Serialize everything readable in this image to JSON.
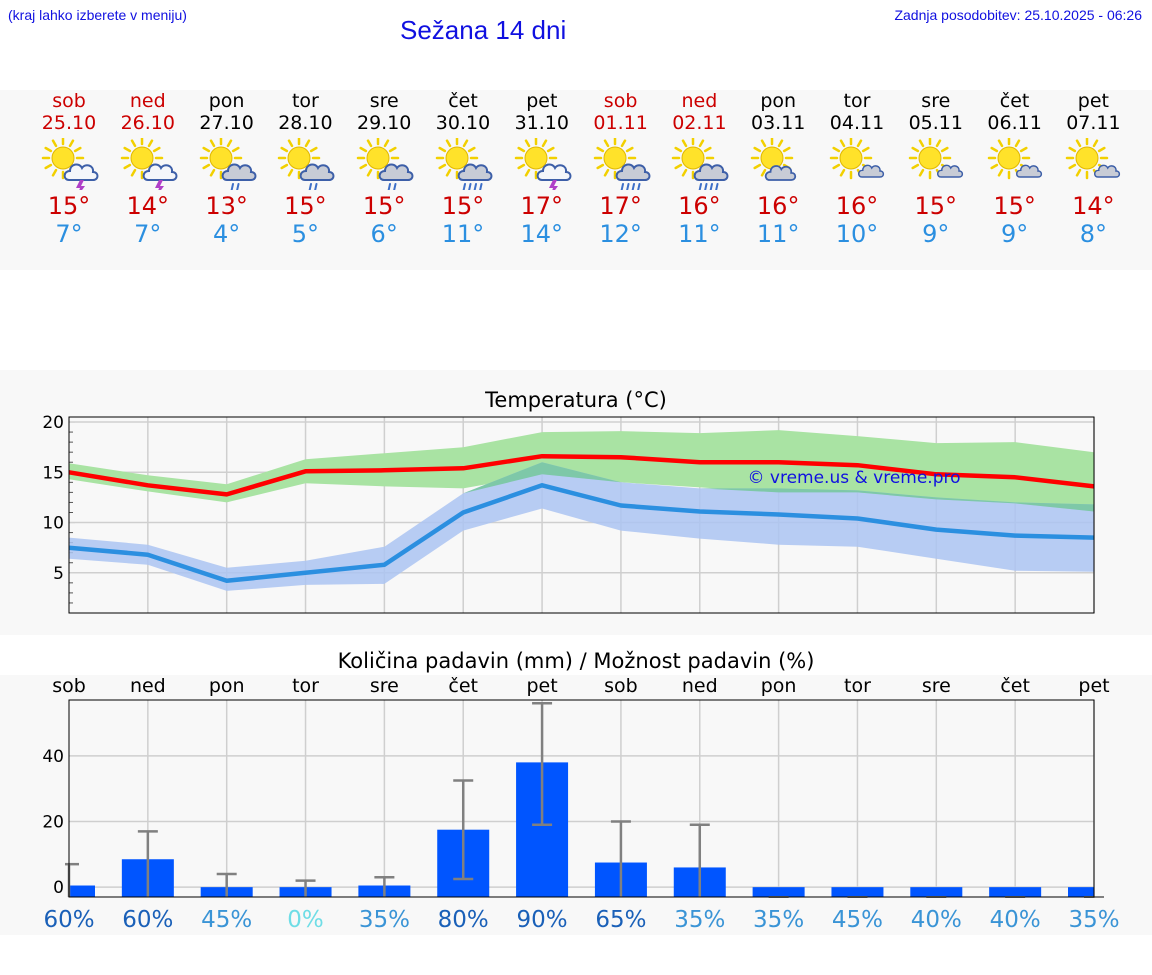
{
  "header": {
    "hint": "(kraj lahko izberete v meniju)",
    "title": "Sežana 14 dni",
    "updated": "Zadnja posodobitev: 25.10.2025 - 06:26"
  },
  "colors": {
    "weekend": "#cc0000",
    "weekday": "#000000",
    "tmax": "#cc0000",
    "tmin": "#2b8fe0",
    "max_line": "#ff0000",
    "max_band": "#a9e3a3",
    "min_line": "#2b8fe0",
    "min_band": "#abc4f2",
    "overlap_band": "#7ec8a8",
    "bar": "#0055ff",
    "errorbar": "#808080",
    "watermark": "#1010e0"
  },
  "days": [
    {
      "name": "sob",
      "date": "25.10",
      "weekend": true,
      "icon": "sun-cloud-thunder-icon",
      "max": "15°",
      "min": "7°"
    },
    {
      "name": "ned",
      "date": "26.10",
      "weekend": true,
      "icon": "sun-cloud-thunder-icon",
      "max": "14°",
      "min": "7°"
    },
    {
      "name": "pon",
      "date": "27.10",
      "weekend": false,
      "icon": "sun-cloud-rain-icon",
      "max": "13°",
      "min": "4°"
    },
    {
      "name": "tor",
      "date": "28.10",
      "weekend": false,
      "icon": "sun-cloud-rain-icon",
      "max": "15°",
      "min": "5°"
    },
    {
      "name": "sre",
      "date": "29.10",
      "weekend": false,
      "icon": "sun-cloud-rain-icon",
      "max": "15°",
      "min": "6°"
    },
    {
      "name": "čet",
      "date": "30.10",
      "weekend": false,
      "icon": "sun-cloud-heavy-rain-icon",
      "max": "15°",
      "min": "11°"
    },
    {
      "name": "pet",
      "date": "31.10",
      "weekend": false,
      "icon": "sun-cloud-thunder-icon",
      "max": "17°",
      "min": "14°"
    },
    {
      "name": "sob",
      "date": "01.11",
      "weekend": true,
      "icon": "sun-cloud-heavy-rain-icon",
      "max": "17°",
      "min": "12°"
    },
    {
      "name": "ned",
      "date": "02.11",
      "weekend": true,
      "icon": "sun-cloud-heavy-rain-icon",
      "max": "16°",
      "min": "11°"
    },
    {
      "name": "pon",
      "date": "03.11",
      "weekend": false,
      "icon": "sun-cloud-icon",
      "max": "16°",
      "min": "11°"
    },
    {
      "name": "tor",
      "date": "04.11",
      "weekend": false,
      "icon": "sun-small-cloud-icon",
      "max": "16°",
      "min": "10°"
    },
    {
      "name": "sre",
      "date": "05.11",
      "weekend": false,
      "icon": "sun-small-cloud-icon",
      "max": "15°",
      "min": "9°"
    },
    {
      "name": "čet",
      "date": "06.11",
      "weekend": false,
      "icon": "sun-small-cloud-icon",
      "max": "15°",
      "min": "9°"
    },
    {
      "name": "pet",
      "date": "07.11",
      "weekend": false,
      "icon": "sun-small-cloud-icon",
      "max": "14°",
      "min": "8°"
    }
  ],
  "chart_data": [
    {
      "type": "line",
      "title": "Temperatura (°C)",
      "watermark": "© vreme.us & vreme.pro",
      "ylim": [
        1,
        20.5
      ],
      "yticks": [
        5,
        10,
        15,
        20
      ],
      "grid": true,
      "x": [
        0,
        1,
        2,
        3,
        4,
        5,
        6,
        7,
        8,
        9,
        10,
        11,
        12,
        13
      ],
      "series": [
        {
          "role": "max",
          "values": [
            15.0,
            13.7,
            12.8,
            15.1,
            15.2,
            15.4,
            16.6,
            16.5,
            16.0,
            16.0,
            15.7,
            14.8,
            14.5,
            13.6
          ],
          "band_low": [
            14.3,
            13.1,
            12.0,
            13.9,
            13.6,
            13.4,
            14.8,
            14.0,
            13.5,
            13.0,
            13.0,
            12.3,
            11.9,
            11.1
          ],
          "band_high": [
            15.9,
            14.7,
            13.8,
            16.3,
            16.9,
            17.5,
            19.0,
            19.1,
            18.9,
            19.2,
            18.6,
            17.9,
            18.0,
            17.0
          ]
        },
        {
          "role": "min",
          "values": [
            7.5,
            6.8,
            4.2,
            5.0,
            5.8,
            11.0,
            13.7,
            11.7,
            11.1,
            10.8,
            10.4,
            9.3,
            8.7,
            8.5
          ],
          "band_low": [
            6.4,
            5.8,
            3.2,
            3.8,
            3.9,
            9.2,
            11.4,
            9.2,
            8.4,
            7.8,
            7.6,
            6.4,
            5.2,
            5.1
          ],
          "band_high": [
            8.5,
            7.8,
            5.5,
            6.2,
            7.6,
            12.9,
            16.0,
            14.0,
            13.4,
            13.4,
            13.2,
            12.5,
            12.0,
            11.8
          ]
        }
      ]
    },
    {
      "type": "bar",
      "title": "Količina padavin (mm) / Možnost padavin (%)",
      "categories": [
        "sob",
        "ned",
        "pon",
        "tor",
        "sre",
        "čet",
        "pet",
        "sob",
        "ned",
        "pon",
        "tor",
        "sre",
        "čet",
        "pet"
      ],
      "ylim": [
        -3,
        57
      ],
      "yticks": [
        0,
        20,
        40
      ],
      "grid": true,
      "values": [
        0.5,
        8.5,
        0,
        0,
        0.5,
        17.5,
        38,
        7.5,
        6,
        0,
        0,
        0,
        0,
        0
      ],
      "err_low": [
        0,
        0,
        0,
        0,
        0,
        2.5,
        19,
        0,
        0,
        0,
        0,
        0,
        0,
        0
      ],
      "err_high": [
        7,
        17,
        4,
        2,
        3,
        32.5,
        56,
        20,
        19,
        0,
        0,
        0,
        0,
        0
      ],
      "probabilities": [
        "60%",
        "60%",
        "45%",
        "0%",
        "35%",
        "80%",
        "90%",
        "65%",
        "35%",
        "35%",
        "45%",
        "40%",
        "40%",
        "35%"
      ],
      "probability_colors": [
        "#1a60b8",
        "#1a60b8",
        "#3a94d6",
        "#6fdde6",
        "#3a94d6",
        "#1a60b8",
        "#1a60b8",
        "#1a60b8",
        "#3a94d6",
        "#3a94d6",
        "#3a94d6",
        "#3a94d6",
        "#3a94d6",
        "#3a94d6"
      ]
    }
  ]
}
